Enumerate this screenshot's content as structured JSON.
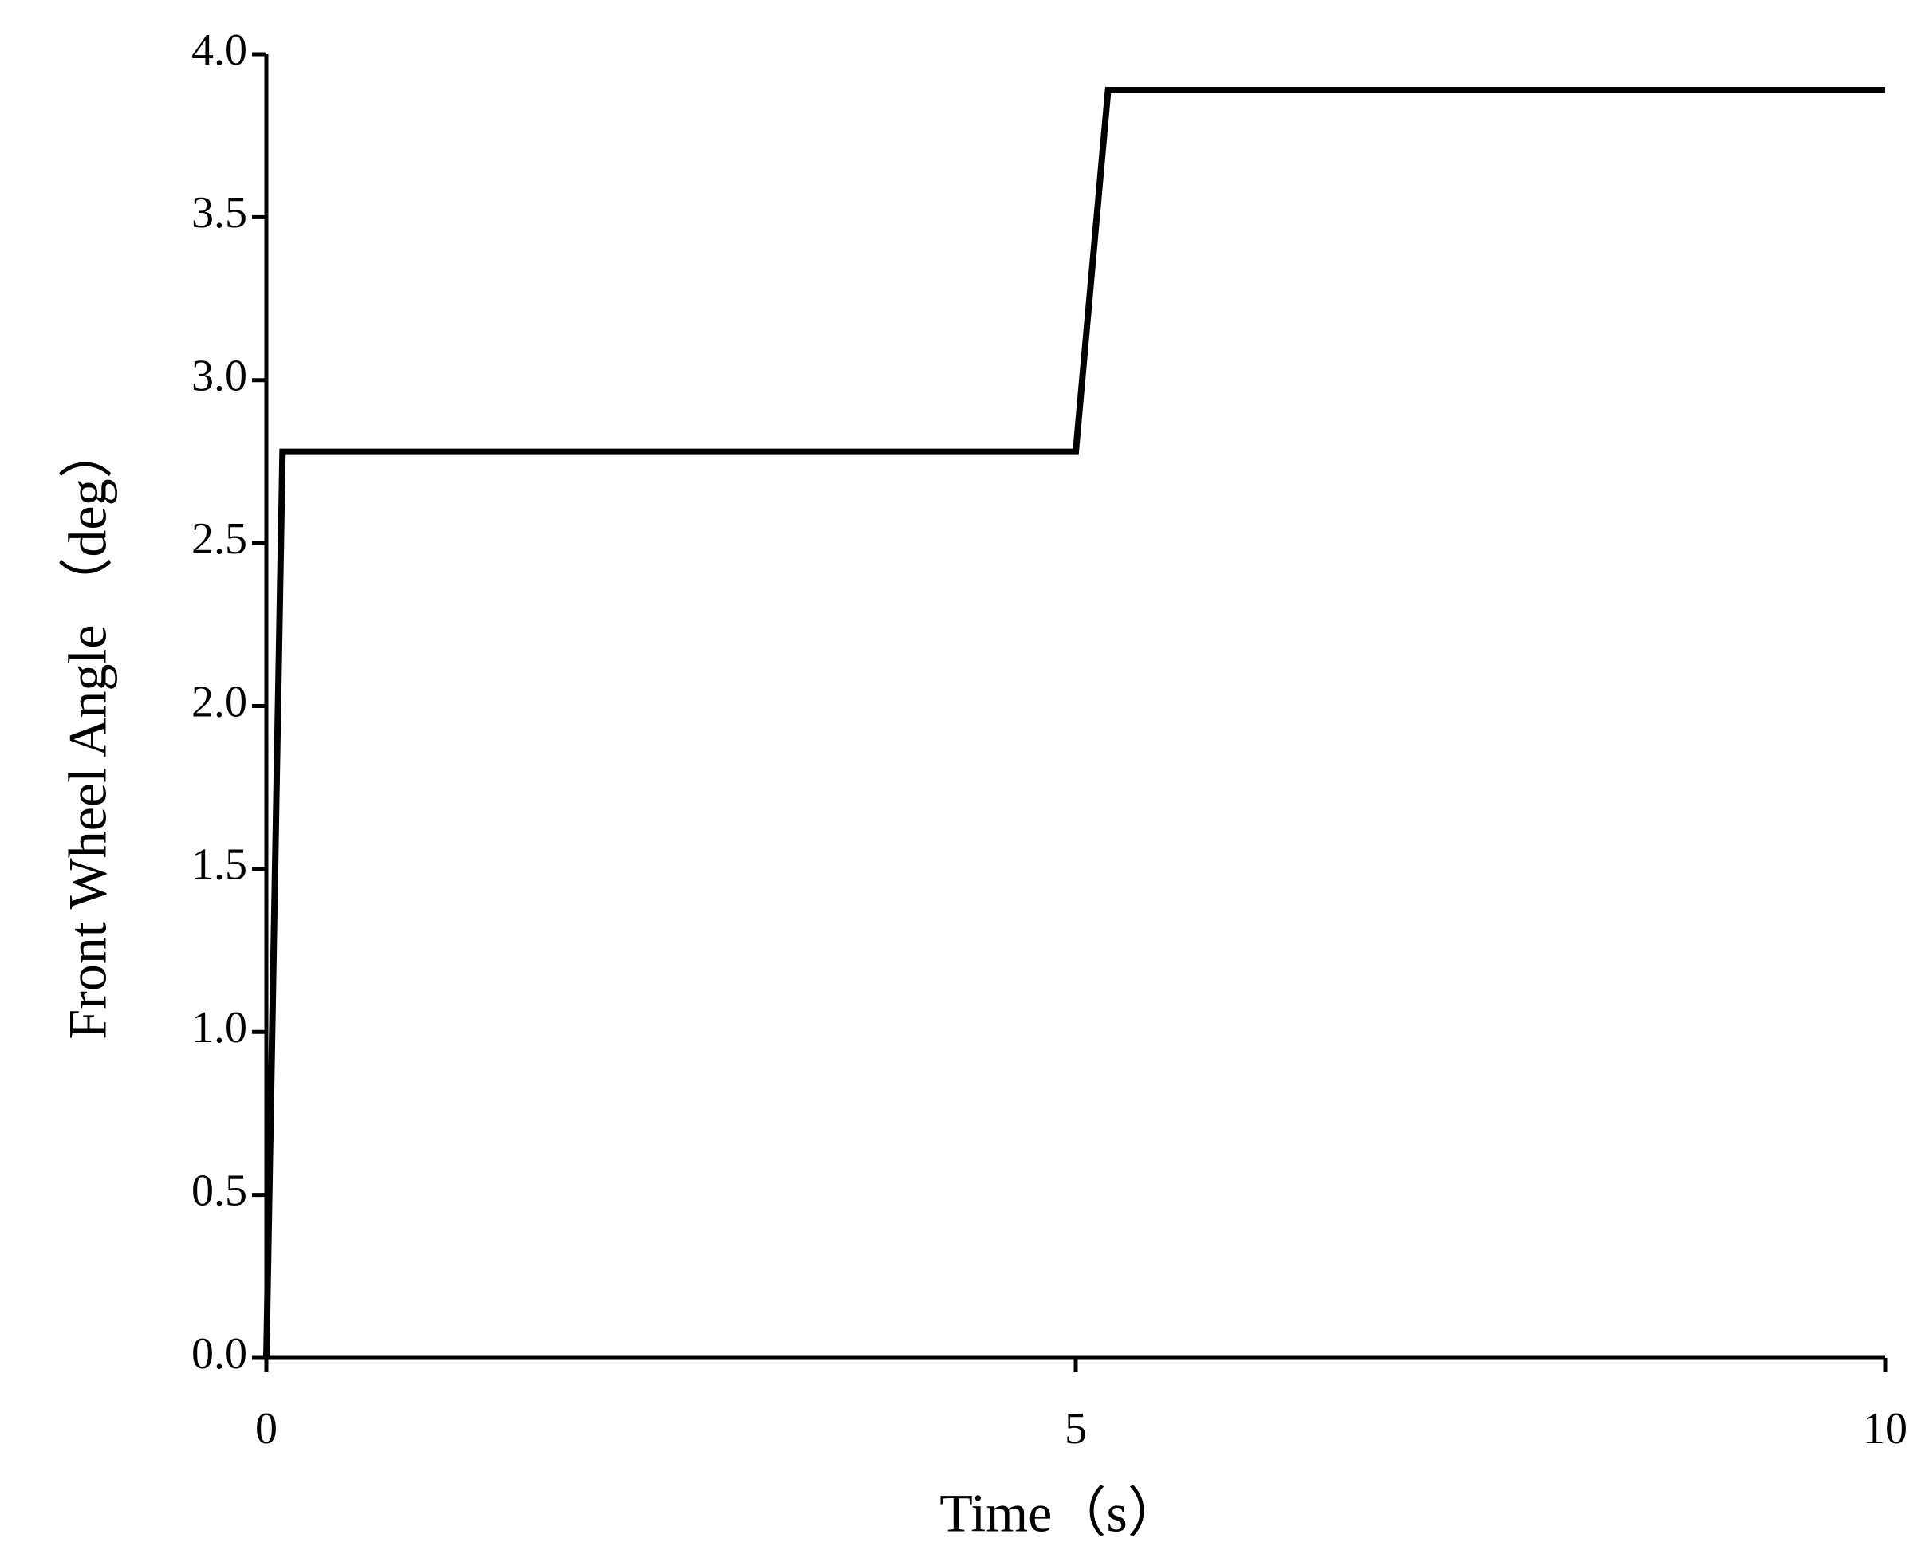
{
  "chart_data": {
    "type": "line",
    "x_label": "Time（s）",
    "y_label": "Front Wheel Angle （deg）",
    "x": [
      0,
      0.1,
      5.0,
      5.2,
      10
    ],
    "values": [
      0,
      2.78,
      2.78,
      3.89,
      3.89
    ],
    "color": "#000000",
    "xlim": [
      0,
      10
    ],
    "xticks": [
      0,
      5,
      10
    ],
    "ylim": [
      0,
      4
    ],
    "yticks": [
      {
        "value": 0,
        "label": "0.0"
      },
      {
        "value": 0.5,
        "label": "0.5"
      },
      {
        "value": 1,
        "label": "1.0"
      },
      {
        "value": 1.5,
        "label": "1.5"
      },
      {
        "value": 2,
        "label": "2.0"
      },
      {
        "value": 2.5,
        "label": "2.5"
      },
      {
        "value": 3,
        "label": "3.0"
      },
      {
        "value": 3.5,
        "label": "3.5"
      },
      {
        "value": 4,
        "label": "4.0"
      }
    ],
    "grid": false
  }
}
